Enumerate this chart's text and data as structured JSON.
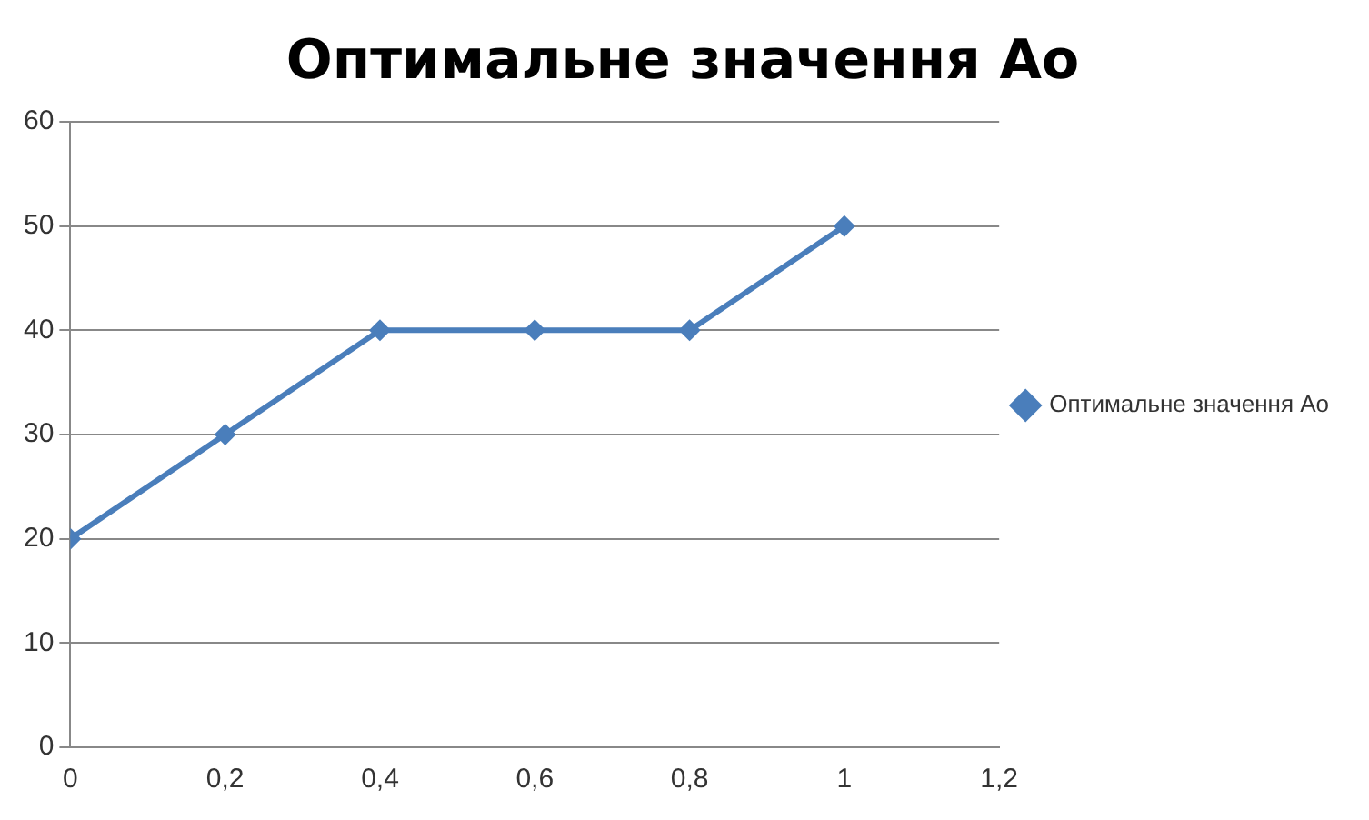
{
  "chart_data": {
    "type": "line",
    "title": "Оптимальне значення Ао",
    "x": [
      0,
      0.2,
      0.4,
      0.6,
      0.8,
      1
    ],
    "series": [
      {
        "name": "Оптимальне значення Ао",
        "color": "#4a7ebb",
        "values": [
          20,
          30,
          40,
          40,
          40,
          50
        ]
      }
    ],
    "xlim": [
      0,
      1.2
    ],
    "xticks": [
      0,
      {
        "value": 0.2,
        "label": "0,2"
      },
      {
        "value": 0.4,
        "label": "0,4"
      },
      {
        "value": 0.6,
        "label": "0,6"
      },
      {
        "value": 0.8,
        "label": "0,8"
      },
      1,
      {
        "value": 1.2,
        "label": "1,2"
      }
    ],
    "ylim": [
      0,
      60
    ],
    "yticks": [
      0,
      10,
      20,
      30,
      40,
      50,
      60
    ],
    "grid": "y",
    "legend": "right",
    "marker": "diamond",
    "line_style": "solid"
  }
}
